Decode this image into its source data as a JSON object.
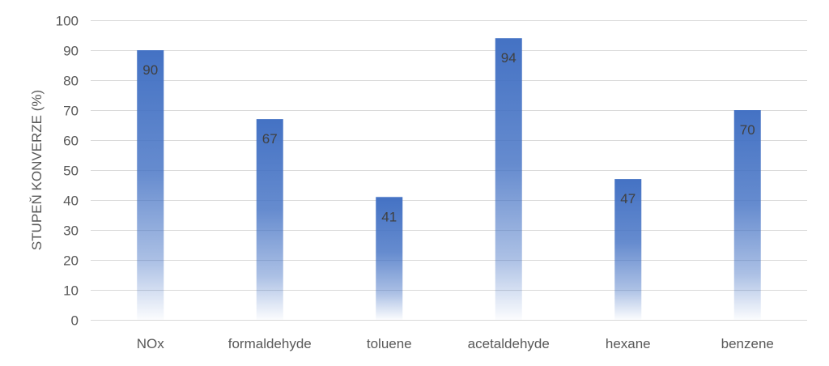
{
  "chart_data": {
    "type": "bar",
    "categories": [
      "NOx",
      "formaldehyde",
      "toluene",
      "acetaldehyde",
      "hexane",
      "benzene"
    ],
    "values": [
      90,
      67,
      41,
      94,
      47,
      70
    ],
    "ylabel": "STUPEŇ KONVERZE (%)",
    "ylim": [
      0,
      100
    ],
    "yticks": [
      0,
      10,
      20,
      30,
      40,
      50,
      60,
      70,
      80,
      90,
      100
    ],
    "data_labels": true,
    "grid": true,
    "legend": "none",
    "fill": "gradient, solid at top fading to white at bottom"
  },
  "colors": {
    "bar": "#4472C4",
    "text": "#595959",
    "data_label": "#404040",
    "grid": "#D9D9D9"
  }
}
